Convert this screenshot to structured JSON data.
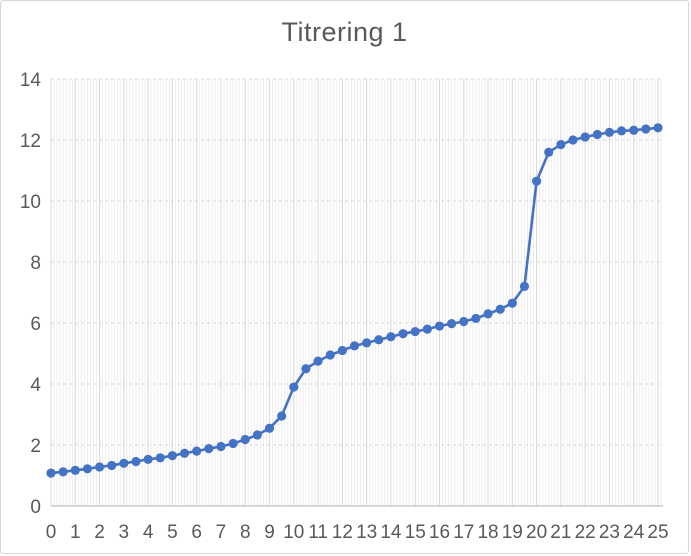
{
  "chart_data": {
    "type": "line",
    "title": "Titrering 1",
    "xlabel": "",
    "ylabel": "",
    "xlim": [
      0,
      25
    ],
    "ylim": [
      0,
      14
    ],
    "x_ticks": [
      0,
      1,
      2,
      3,
      4,
      5,
      6,
      7,
      8,
      9,
      10,
      11,
      12,
      13,
      14,
      15,
      16,
      17,
      18,
      19,
      20,
      21,
      22,
      23,
      24,
      25
    ],
    "y_ticks": [
      0,
      2,
      4,
      6,
      8,
      10,
      12,
      14
    ],
    "x_minor_step": 0.125,
    "grid": {
      "horizontal_major": "dashed",
      "vertical_major": "solid",
      "vertical_minor": "solid"
    },
    "legend": "none",
    "marker": "circle",
    "x": [
      0,
      0.5,
      1,
      1.5,
      2,
      2.5,
      3,
      3.5,
      4,
      4.5,
      5,
      5.5,
      6,
      6.5,
      7,
      7.5,
      8,
      8.5,
      9,
      9.5,
      10,
      10.5,
      11,
      11.5,
      12,
      12.5,
      13,
      13.5,
      14,
      14.5,
      15,
      15.5,
      16,
      16.5,
      17,
      17.5,
      18,
      18.5,
      19,
      19.5,
      20,
      20.5,
      21,
      21.5,
      22,
      22.5,
      23,
      23.5,
      24,
      24.5,
      25
    ],
    "series": [
      {
        "name": "Titrering 1",
        "values": [
          1.08,
          1.12,
          1.17,
          1.22,
          1.28,
          1.33,
          1.4,
          1.46,
          1.53,
          1.58,
          1.65,
          1.73,
          1.8,
          1.88,
          1.95,
          2.05,
          2.18,
          2.33,
          2.55,
          2.95,
          3.9,
          4.5,
          4.75,
          4.95,
          5.1,
          5.25,
          5.35,
          5.45,
          5.55,
          5.65,
          5.72,
          5.8,
          5.9,
          5.98,
          6.05,
          6.15,
          6.3,
          6.45,
          6.65,
          7.2,
          10.65,
          11.6,
          11.85,
          12.0,
          12.1,
          12.18,
          12.25,
          12.3,
          12.32,
          12.36,
          12.4
        ]
      }
    ],
    "colors": {
      "series": "#4472C4",
      "gridline_major": "#d9d9d9",
      "gridline_minor": "#eeeeee",
      "axis_line": "#bfbfbf",
      "text": "#595959",
      "border": "#d7d7d7",
      "background": "#ffffff"
    }
  }
}
